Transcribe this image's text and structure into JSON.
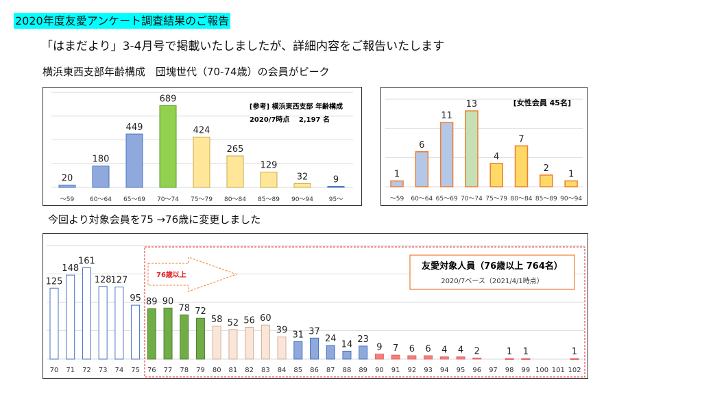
{
  "header": {
    "title": "2020年度友愛アンケート調査結果のご報告",
    "subtitle": "「はまだより」3-4月号で掲載いたしましたが、詳細内容をご報告いたします",
    "caption_age": "横浜東西支部年齢構成　団塊世代（70-74歳）の会員がピーク",
    "caption_change": "今回より対象会員を75 →76歳に変更しました"
  },
  "chart_data": [
    {
      "type": "bar",
      "title": "[参考]  横浜東西支部 年齢構成",
      "subtitle": "2020/7時点　 2,197 名",
      "categories": [
        "～59",
        "60～64",
        "65～69",
        "70～74",
        "75～79",
        "80～84",
        "85～89",
        "90～94",
        "95～"
      ],
      "values": [
        20,
        180,
        449,
        689,
        424,
        265,
        129,
        32,
        9
      ],
      "ylim": [
        0,
        800
      ],
      "grid": true,
      "colors": [
        "#8fa9dc",
        "#8fa9dc",
        "#8fa9dc",
        "#92d050",
        "#ffe699",
        "#ffe699",
        "#ffe699",
        "#ffe699",
        "#8fa9dc"
      ]
    },
    {
      "type": "bar",
      "title": "[女性会員 45名]",
      "categories": [
        "～59",
        "60～64",
        "65～69",
        "70～74",
        "75～79",
        "80～84",
        "85～89",
        "90～94"
      ],
      "values": [
        1,
        6,
        11,
        13,
        4,
        7,
        2,
        1
      ],
      "ylim": [
        0,
        15
      ],
      "grid": true,
      "colors": [
        "#b4c7e7",
        "#b4c7e7",
        "#b4c7e7",
        "#c5e0b4",
        "#ffd966",
        "#ffd966",
        "#ffd966",
        "#ffd966"
      ],
      "border": "#ed7d31"
    },
    {
      "type": "bar",
      "categories": [
        "70",
        "71",
        "72",
        "73",
        "74",
        "75",
        "76",
        "77",
        "78",
        "79",
        "80",
        "81",
        "82",
        "83",
        "84",
        "85",
        "86",
        "87",
        "88",
        "89",
        "90",
        "91",
        "92",
        "93",
        "94",
        "95",
        "96",
        "97",
        "98",
        "99",
        "100",
        "101",
        "102"
      ],
      "values": [
        125,
        148,
        161,
        128,
        127,
        95,
        89,
        90,
        78,
        72,
        58,
        52,
        56,
        60,
        39,
        31,
        37,
        24,
        14,
        23,
        9,
        7,
        6,
        6,
        4,
        4,
        2,
        null,
        1,
        1,
        null,
        null,
        1
      ],
      "ylim": [
        0,
        200
      ],
      "grid": true,
      "annotation_arrow": "76歳以上",
      "info_title": "友愛対象人員（76歳以上  764名）",
      "info_sub": "2020/7ベース（2021/4/1時点）",
      "colors": {
        "under76": "#ffffff",
        "76-79": "#70ad47",
        "80-84": "#fbe5d6",
        "85-89": "#8fa9dc",
        "90+": "#f4827a"
      }
    }
  ]
}
